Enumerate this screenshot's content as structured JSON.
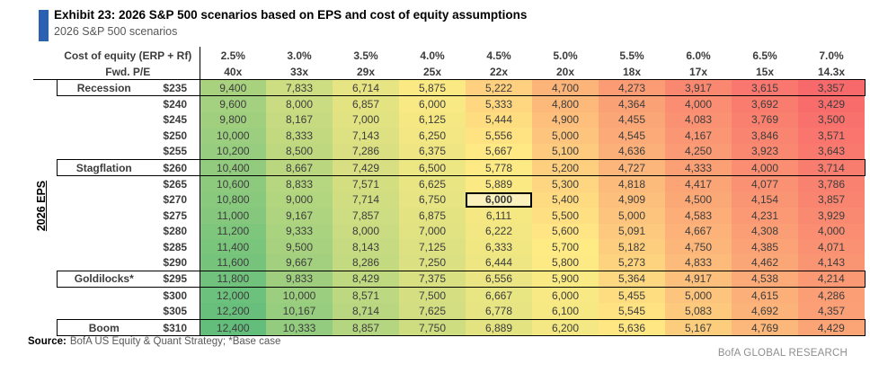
{
  "page": {
    "title": "Exhibit 23: 2026 S&P 500 scenarios based on EPS and cost of equity assumptions",
    "subtitle": "2026 S&P 500 scenarios",
    "source_label": "Source:",
    "source_text": "BofA US Equity & Quant Strategy; *Base case",
    "footer_brand": "BofA GLOBAL RESEARCH",
    "accent_color": "#2B61B0"
  },
  "chart_data": {
    "type": "heatmap",
    "title": "Exhibit 23: 2026 S&P 500 scenarios based on EPS and cost of equity assumptions",
    "subtitle": "2026 S&P 500 scenarios",
    "corner": {
      "line1": "Cost of equity (ERP + Rf)",
      "line2": "Fwd. P/E"
    },
    "row_axis_label": "2026 EPS",
    "columns": [
      {
        "cost_of_equity": "2.5%",
        "fwd_pe": "40x"
      },
      {
        "cost_of_equity": "3.0%",
        "fwd_pe": "33x"
      },
      {
        "cost_of_equity": "3.5%",
        "fwd_pe": "29x"
      },
      {
        "cost_of_equity": "4.0%",
        "fwd_pe": "25x"
      },
      {
        "cost_of_equity": "4.5%",
        "fwd_pe": "22x"
      },
      {
        "cost_of_equity": "5.0%",
        "fwd_pe": "20x"
      },
      {
        "cost_of_equity": "5.5%",
        "fwd_pe": "18x"
      },
      {
        "cost_of_equity": "6.0%",
        "fwd_pe": "17x"
      },
      {
        "cost_of_equity": "6.5%",
        "fwd_pe": "15x"
      },
      {
        "cost_of_equity": "7.0%",
        "fwd_pe": "14.3x"
      }
    ],
    "rows": [
      {
        "scenario": "Recession",
        "eps": "$235",
        "values": [
          "9,400",
          "7,833",
          "6,714",
          "5,875",
          "5,222",
          "4,700",
          "4,273",
          "3,917",
          "3,615",
          "3,357"
        ]
      },
      {
        "scenario": null,
        "eps": "$240",
        "values": [
          "9,600",
          "8,000",
          "6,857",
          "6,000",
          "5,333",
          "4,800",
          "4,364",
          "4,000",
          "3,692",
          "3,429"
        ]
      },
      {
        "scenario": null,
        "eps": "$245",
        "values": [
          "9,800",
          "8,167",
          "7,000",
          "6,125",
          "5,444",
          "4,900",
          "4,455",
          "4,083",
          "3,769",
          "3,500"
        ]
      },
      {
        "scenario": null,
        "eps": "$250",
        "values": [
          "10,000",
          "8,333",
          "7,143",
          "6,250",
          "5,556",
          "5,000",
          "4,545",
          "4,167",
          "3,846",
          "3,571"
        ]
      },
      {
        "scenario": null,
        "eps": "$255",
        "values": [
          "10,200",
          "8,500",
          "7,286",
          "6,375",
          "5,667",
          "5,100",
          "4,636",
          "4,250",
          "3,923",
          "3,643"
        ]
      },
      {
        "scenario": "Stagflation",
        "eps": "$260",
        "values": [
          "10,400",
          "8,667",
          "7,429",
          "6,500",
          "5,778",
          "5,200",
          "4,727",
          "4,333",
          "4,000",
          "3,714"
        ]
      },
      {
        "scenario": null,
        "eps": "$265",
        "values": [
          "10,600",
          "8,833",
          "7,571",
          "6,625",
          "5,889",
          "5,300",
          "4,818",
          "4,417",
          "4,077",
          "3,786"
        ]
      },
      {
        "scenario": null,
        "eps": "$270",
        "values": [
          "10,800",
          "9,000",
          "7,714",
          "6,750",
          "6,000",
          "5,400",
          "4,909",
          "4,500",
          "4,154",
          "3,857"
        ]
      },
      {
        "scenario": null,
        "eps": "$275",
        "values": [
          "11,000",
          "9,167",
          "7,857",
          "6,875",
          "6,111",
          "5,500",
          "5,000",
          "4,583",
          "4,231",
          "3,929"
        ]
      },
      {
        "scenario": null,
        "eps": "$280",
        "values": [
          "11,200",
          "9,333",
          "8,000",
          "7,000",
          "6,222",
          "5,600",
          "5,091",
          "4,667",
          "4,308",
          "4,000"
        ]
      },
      {
        "scenario": null,
        "eps": "$285",
        "values": [
          "11,400",
          "9,500",
          "8,143",
          "7,125",
          "6,333",
          "5,700",
          "5,182",
          "4,750",
          "4,385",
          "4,071"
        ]
      },
      {
        "scenario": null,
        "eps": "$290",
        "values": [
          "11,600",
          "9,667",
          "8,286",
          "7,250",
          "6,444",
          "5,800",
          "5,273",
          "4,833",
          "4,462",
          "4,143"
        ]
      },
      {
        "scenario": "Goldilocks*",
        "eps": "$295",
        "values": [
          "11,800",
          "9,833",
          "8,429",
          "7,375",
          "6,556",
          "5,900",
          "5,364",
          "4,917",
          "4,538",
          "4,214"
        ]
      },
      {
        "scenario": null,
        "eps": "$300",
        "values": [
          "12,000",
          "10,000",
          "8,571",
          "7,500",
          "6,667",
          "6,000",
          "5,455",
          "5,000",
          "4,615",
          "4,286"
        ]
      },
      {
        "scenario": null,
        "eps": "$305",
        "values": [
          "12,200",
          "10,167",
          "8,714",
          "7,625",
          "6,778",
          "6,100",
          "5,545",
          "5,083",
          "4,692",
          "4,357"
        ]
      },
      {
        "scenario": "Boom",
        "eps": "$310",
        "values": [
          "12,400",
          "10,333",
          "8,857",
          "7,750",
          "6,889",
          "6,200",
          "5,636",
          "5,167",
          "4,769",
          "4,429"
        ]
      }
    ],
    "highlight_cell": {
      "row_index": 7,
      "col_index": 4,
      "value": "6,000"
    },
    "color_scale": {
      "min_value": 3357,
      "mid_value": 5700,
      "max_value": 12400,
      "min_color": "#F8696B",
      "mid_color": "#FFEB84",
      "max_color": "#63BE7B"
    },
    "highlight_bg": "#FBF1BC"
  }
}
